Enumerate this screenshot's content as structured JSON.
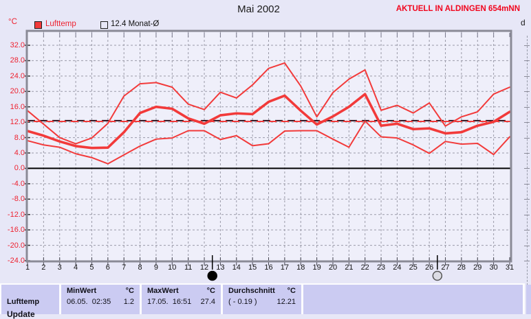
{
  "header": {
    "title": "Mai 2002",
    "station_banner": "AKTUELL IN ALDINGEN 654mNN",
    "y_axis_unit": "°C",
    "adjacent_panel_partial_label": "d"
  },
  "legend": {
    "lufttemp_label": "Lufttemp",
    "monat_avg_label": "12.4 Monat-Ø"
  },
  "chart_data": {
    "type": "line",
    "title": "Mai 2002",
    "x_ticks": [
      "1",
      "2",
      "3",
      "4",
      "5",
      "6",
      "7",
      "8",
      "9",
      "10",
      "11",
      "12",
      "13",
      "14",
      "15",
      "16",
      "17",
      "18",
      "19",
      "20",
      "21",
      "22",
      "23",
      "24",
      "25",
      "26",
      "27",
      "28",
      "29",
      "30",
      "31"
    ],
    "y_axis": {
      "unit": "°C",
      "tick_labels": [
        "32.0",
        "28.0",
        "24.0",
        "20.0",
        "16.0",
        "12.0",
        "8.0",
        "4.0",
        "0.0",
        "-4.0",
        "-8.0",
        "-12.0",
        "-16.0",
        "-20.0",
        "-24.0"
      ]
    },
    "grid": "dashed",
    "series_color": "#f23a3a",
    "series": [
      {
        "name": "tagesmaximum",
        "style": "thin",
        "values": [
          15.0,
          11.5,
          8.0,
          6.4,
          7.9,
          11.7,
          18.8,
          22.0,
          22.3,
          21.1,
          16.7,
          15.3,
          19.8,
          18.3,
          21.7,
          26.0,
          27.4,
          21.4,
          13.4,
          19.7,
          23.2,
          25.6,
          15.1,
          16.4,
          14.4,
          17.0,
          11.0,
          13.4,
          14.7,
          19.3,
          21.1
        ]
      },
      {
        "name": "tagesmittel",
        "style": "thick",
        "values": [
          9.7,
          8.5,
          7.0,
          5.8,
          5.3,
          5.4,
          9.4,
          14.4,
          16.0,
          15.5,
          13.0,
          11.6,
          13.8,
          14.3,
          14.1,
          17.3,
          18.9,
          15.0,
          11.4,
          13.5,
          16.0,
          19.3,
          11.1,
          11.6,
          10.2,
          10.4,
          9.1,
          9.4,
          11.1,
          12.1,
          14.7
        ]
      },
      {
        "name": "tagesminimum",
        "style": "thin",
        "values": [
          7.2,
          6.1,
          5.5,
          3.8,
          2.8,
          1.2,
          3.5,
          5.8,
          7.6,
          7.9,
          9.8,
          9.8,
          7.5,
          8.5,
          5.9,
          6.4,
          9.7,
          9.8,
          9.8,
          7.6,
          5.5,
          12.3,
          8.2,
          7.9,
          6.1,
          3.9,
          7.0,
          6.3,
          6.5,
          3.6,
          8.2
        ]
      }
    ],
    "reference_lines": [
      {
        "name": "Monat-Ø",
        "value": 12.4,
        "color": "#2a0d18",
        "style": "dashed"
      },
      {
        "name": "Durchschnitt",
        "value": 12.21,
        "color": "#f23a3a",
        "style": "dashed"
      }
    ],
    "zero_line": {
      "value": 0,
      "color": "#000000"
    },
    "moon_markers": [
      {
        "day_position": 12.5,
        "phase": "new-moon"
      },
      {
        "day_position": 26.5,
        "phase": "full-moon"
      }
    ]
  },
  "summary_table": {
    "row_label": "Lufttemp",
    "second_row_partial_label": "Update",
    "columns": [
      {
        "title": "MinWert",
        "unit": "°C",
        "detail": "06.05.  02:35",
        "value": "1.2"
      },
      {
        "title": "MaxWert",
        "unit": "°C",
        "detail": "17.05.  16:51",
        "value": "27.4"
      },
      {
        "title": "Durchschnitt",
        "unit": "°C",
        "detail": "( - 0.19 )",
        "value": "12.21"
      }
    ]
  }
}
